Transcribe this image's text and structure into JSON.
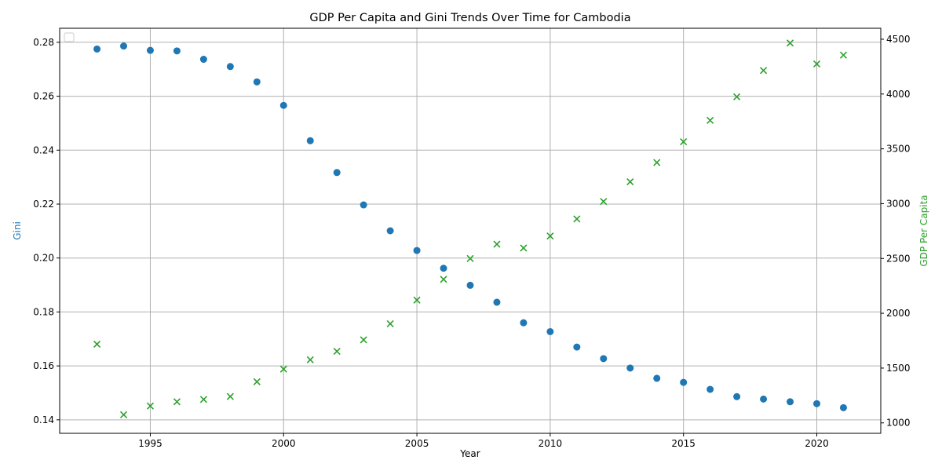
{
  "chart_data": {
    "type": "scatter",
    "title": "GDP Per Capita and Gini Trends Over Time for Cambodia",
    "xlabel": "Year",
    "ylabel_left": "Gini",
    "ylabel_right": "GDP Per Capita",
    "grid": true,
    "legend": "top-left (empty)",
    "x": [
      1993,
      1994,
      1995,
      1996,
      1997,
      1998,
      1999,
      2000,
      2001,
      2002,
      2003,
      2004,
      2005,
      2006,
      2007,
      2008,
      2009,
      2010,
      2011,
      2012,
      2013,
      2014,
      2015,
      2016,
      2017,
      2018,
      2019,
      2020,
      2021
    ],
    "xlim": [
      1991.6,
      2022.4
    ],
    "xticks": [
      1995,
      2000,
      2005,
      2010,
      2015,
      2020
    ],
    "series": [
      {
        "axis": "left",
        "marker": "circle",
        "color": "#1f77b4",
        "values": [
          0.2775,
          0.2786,
          0.277,
          0.2768,
          0.2737,
          0.271,
          0.2653,
          0.2566,
          0.2435,
          0.2317,
          0.2197,
          0.2101,
          0.2028,
          0.1962,
          0.1899,
          0.1836,
          0.176,
          0.1727,
          0.167,
          0.1627,
          0.1592,
          0.1554,
          0.1539,
          0.1513,
          0.1486,
          0.1477,
          0.1467,
          0.146,
          0.1445
        ]
      },
      {
        "axis": "right",
        "marker": "x",
        "color": "#2ca02c",
        "values": [
          1718,
          1075,
          1154,
          1193,
          1214,
          1241,
          1375,
          1491,
          1576,
          1653,
          1758,
          1904,
          2120,
          2310,
          2500,
          2630,
          2595,
          2705,
          2860,
          3020,
          3200,
          3375,
          3565,
          3760,
          3975,
          4215,
          4465,
          4275,
          4355
        ]
      }
    ],
    "ylim_left": [
      0.135,
      0.2852
    ],
    "yticks_left": [
      "0.14",
      "0.16",
      "0.18",
      "0.20",
      "0.22",
      "0.24",
      "0.26",
      "0.28"
    ],
    "ylim_right": [
      905,
      4600
    ],
    "yticks_right": [
      "1000",
      "1500",
      "2000",
      "2500",
      "3000",
      "3500",
      "4000",
      "4500"
    ]
  }
}
